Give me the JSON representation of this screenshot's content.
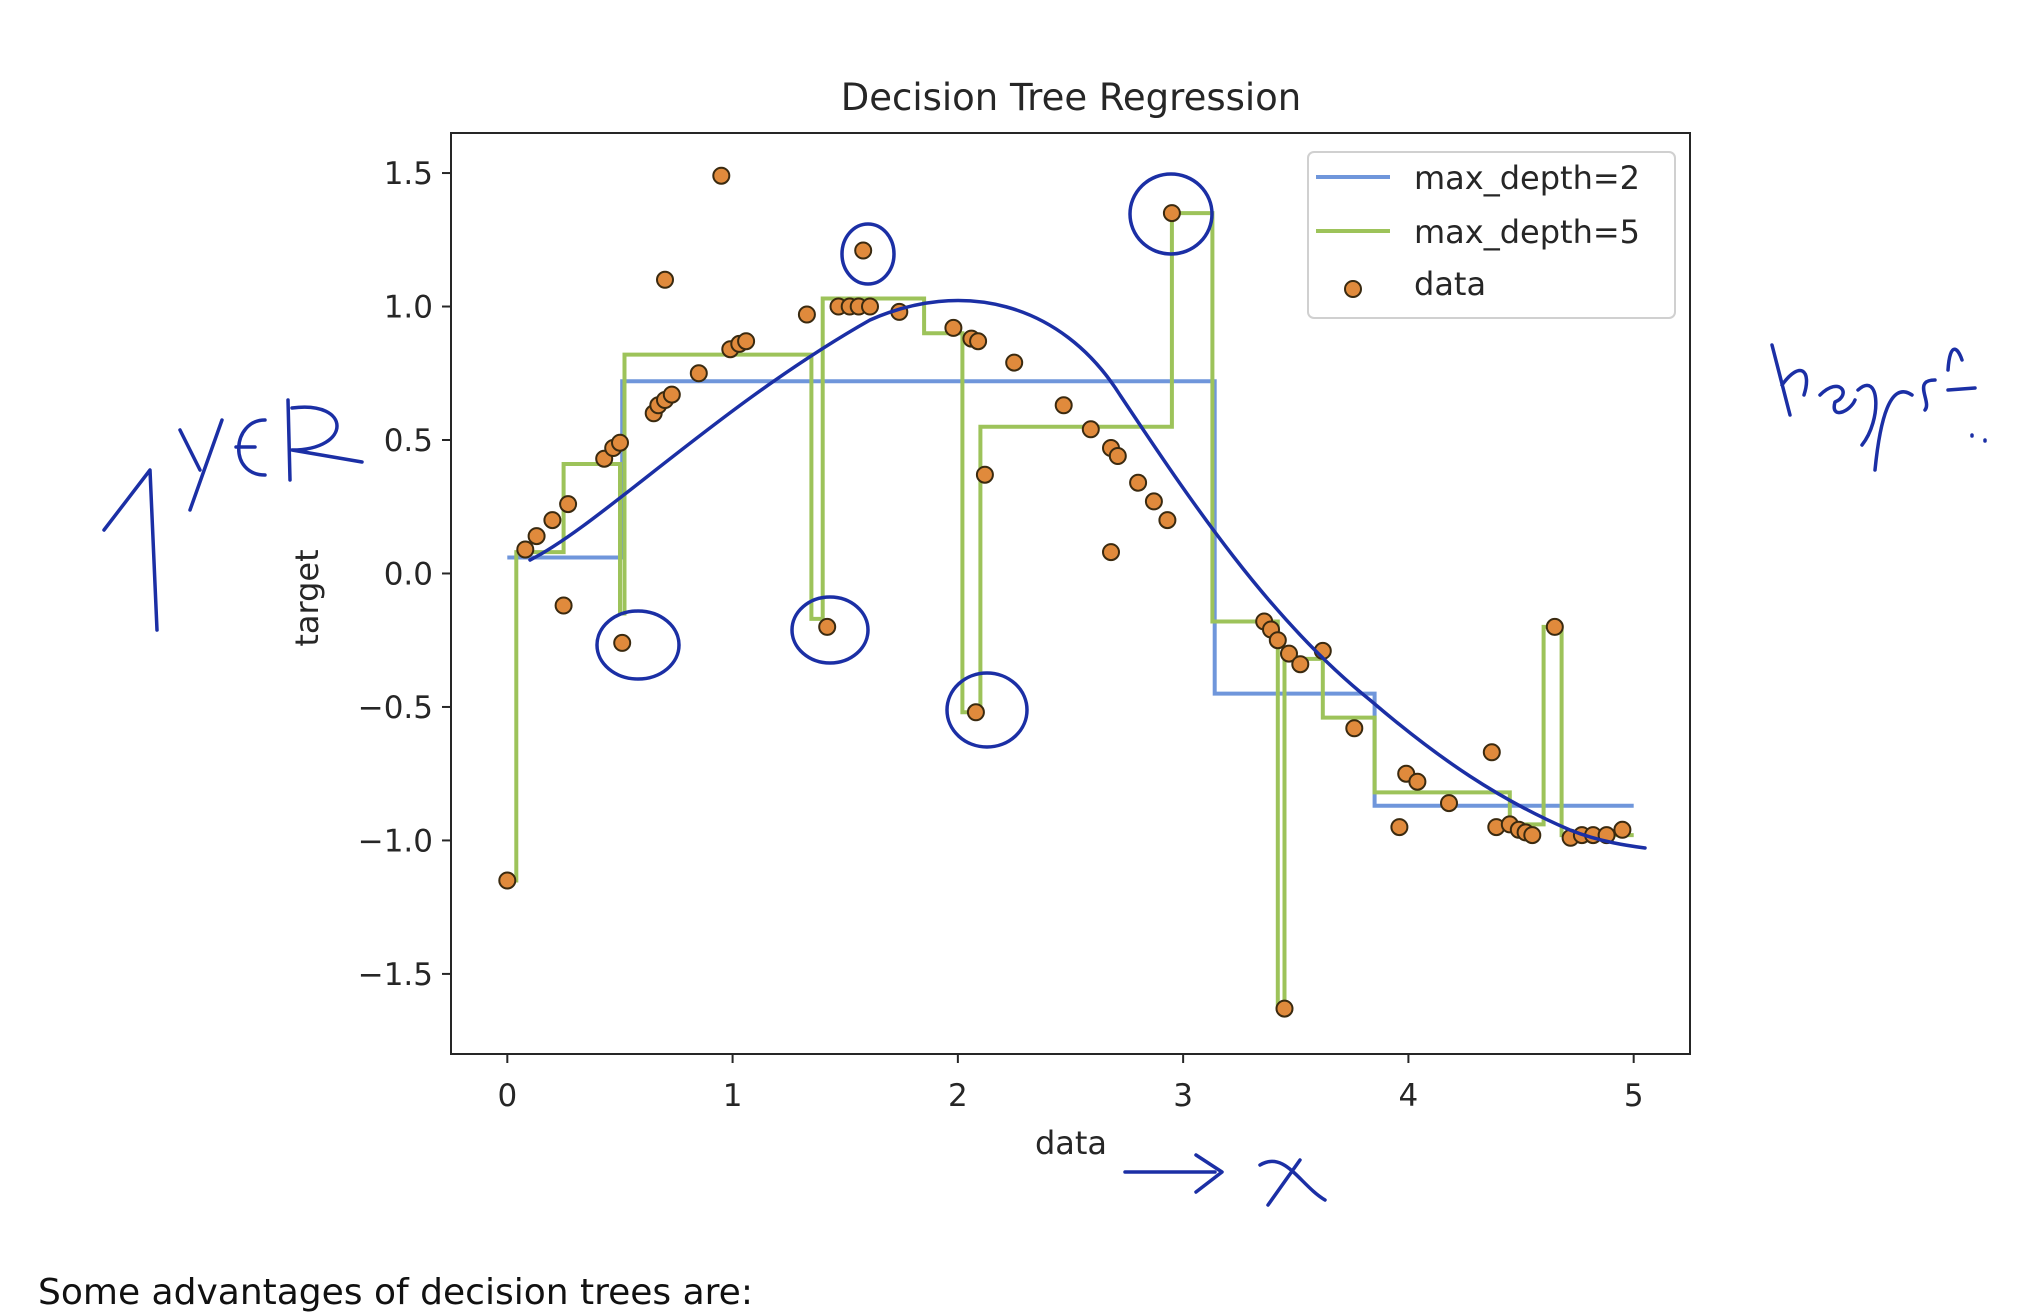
{
  "chart_data": {
    "type": "scatter",
    "title": "Decision Tree Regression",
    "xlabel": "data",
    "ylabel": "target",
    "xlim": [
      -0.25,
      5.25
    ],
    "ylim": [
      -1.8,
      1.65
    ],
    "xticks": [
      "0",
      "1",
      "2",
      "3",
      "4",
      "5"
    ],
    "yticks": [
      "−1.5",
      "−1.0",
      "−0.5",
      "0.0",
      "0.5",
      "1.0",
      "1.5"
    ],
    "legend_placement": "top-right",
    "grid": false,
    "series": [
      {
        "name": "max_depth=2",
        "kind": "step",
        "color": "#6f96db",
        "x": [
          0,
          0.51,
          0.51,
          3.14,
          3.14,
          3.85,
          3.85,
          5.0
        ],
        "y": [
          0.06,
          0.06,
          0.72,
          0.72,
          -0.45,
          -0.45,
          -0.87,
          -0.87
        ]
      },
      {
        "name": "max_depth=5",
        "kind": "step",
        "color": "#9dc35a",
        "x": [
          0,
          0.04,
          0.04,
          0.25,
          0.25,
          0.5,
          0.5,
          0.52,
          0.52,
          1.35,
          1.35,
          1.4,
          1.4,
          1.85,
          1.85,
          2.02,
          2.02,
          2.1,
          2.1,
          2.95,
          2.95,
          3.13,
          3.13,
          3.42,
          3.42,
          3.45,
          3.45,
          3.62,
          3.62,
          3.85,
          3.85,
          4.45,
          4.45,
          4.6,
          4.6,
          4.68,
          4.68,
          5.0
        ],
        "y": [
          -1.15,
          -1.15,
          0.08,
          0.08,
          0.41,
          0.41,
          -0.15,
          -0.15,
          0.82,
          0.82,
          -0.17,
          -0.17,
          1.03,
          1.03,
          0.9,
          0.9,
          -0.52,
          -0.52,
          0.55,
          0.55,
          1.35,
          1.35,
          -0.18,
          -0.18,
          -1.63,
          -1.63,
          -0.32,
          -0.32,
          -0.54,
          -0.54,
          -0.82,
          -0.82,
          -0.94,
          -0.94,
          -0.2,
          -0.2,
          -0.98,
          -0.98
        ]
      },
      {
        "name": "data",
        "kind": "points",
        "color": "#e08a3c",
        "points": [
          [
            0.0,
            -1.15
          ],
          [
            0.08,
            0.09
          ],
          [
            0.13,
            0.14
          ],
          [
            0.2,
            0.2
          ],
          [
            0.25,
            -0.12
          ],
          [
            0.27,
            0.26
          ],
          [
            0.43,
            0.43
          ],
          [
            0.47,
            0.47
          ],
          [
            0.5,
            0.49
          ],
          [
            0.51,
            -0.26
          ],
          [
            0.65,
            0.6
          ],
          [
            0.67,
            0.63
          ],
          [
            0.7,
            0.65
          ],
          [
            0.73,
            0.67
          ],
          [
            0.7,
            1.1
          ],
          [
            0.85,
            0.75
          ],
          [
            0.95,
            1.49
          ],
          [
            0.99,
            0.84
          ],
          [
            1.03,
            0.86
          ],
          [
            1.06,
            0.87
          ],
          [
            1.33,
            0.97
          ],
          [
            1.42,
            -0.2
          ],
          [
            1.47,
            1.0
          ],
          [
            1.52,
            1.0
          ],
          [
            1.56,
            1.0
          ],
          [
            1.58,
            1.21
          ],
          [
            1.61,
            1.0
          ],
          [
            1.74,
            0.98
          ],
          [
            1.98,
            0.92
          ],
          [
            2.06,
            0.88
          ],
          [
            2.09,
            0.87
          ],
          [
            2.08,
            -0.52
          ],
          [
            2.12,
            0.37
          ],
          [
            2.25,
            0.79
          ],
          [
            2.47,
            0.63
          ],
          [
            2.59,
            0.54
          ],
          [
            2.68,
            0.47
          ],
          [
            2.71,
            0.44
          ],
          [
            2.68,
            0.08
          ],
          [
            2.8,
            0.34
          ],
          [
            2.87,
            0.27
          ],
          [
            2.93,
            0.2
          ],
          [
            2.95,
            1.35
          ],
          [
            3.36,
            -0.18
          ],
          [
            3.39,
            -0.21
          ],
          [
            3.42,
            -0.25
          ],
          [
            3.45,
            -1.63
          ],
          [
            3.47,
            -0.3
          ],
          [
            3.52,
            -0.34
          ],
          [
            3.62,
            -0.29
          ],
          [
            3.76,
            -0.58
          ],
          [
            3.99,
            -0.75
          ],
          [
            4.04,
            -0.78
          ],
          [
            3.96,
            -0.95
          ],
          [
            4.18,
            -0.86
          ],
          [
            4.37,
            -0.67
          ],
          [
            4.39,
            -0.95
          ],
          [
            4.45,
            -0.94
          ],
          [
            4.49,
            -0.96
          ],
          [
            4.52,
            -0.97
          ],
          [
            4.55,
            -0.98
          ],
          [
            4.65,
            -0.2
          ],
          [
            4.72,
            -0.99
          ],
          [
            4.77,
            -0.98
          ],
          [
            4.82,
            -0.98
          ],
          [
            4.88,
            -0.98
          ],
          [
            4.95,
            -0.96
          ]
        ]
      }
    ]
  },
  "caption": "Some advantages of decision trees are:"
}
